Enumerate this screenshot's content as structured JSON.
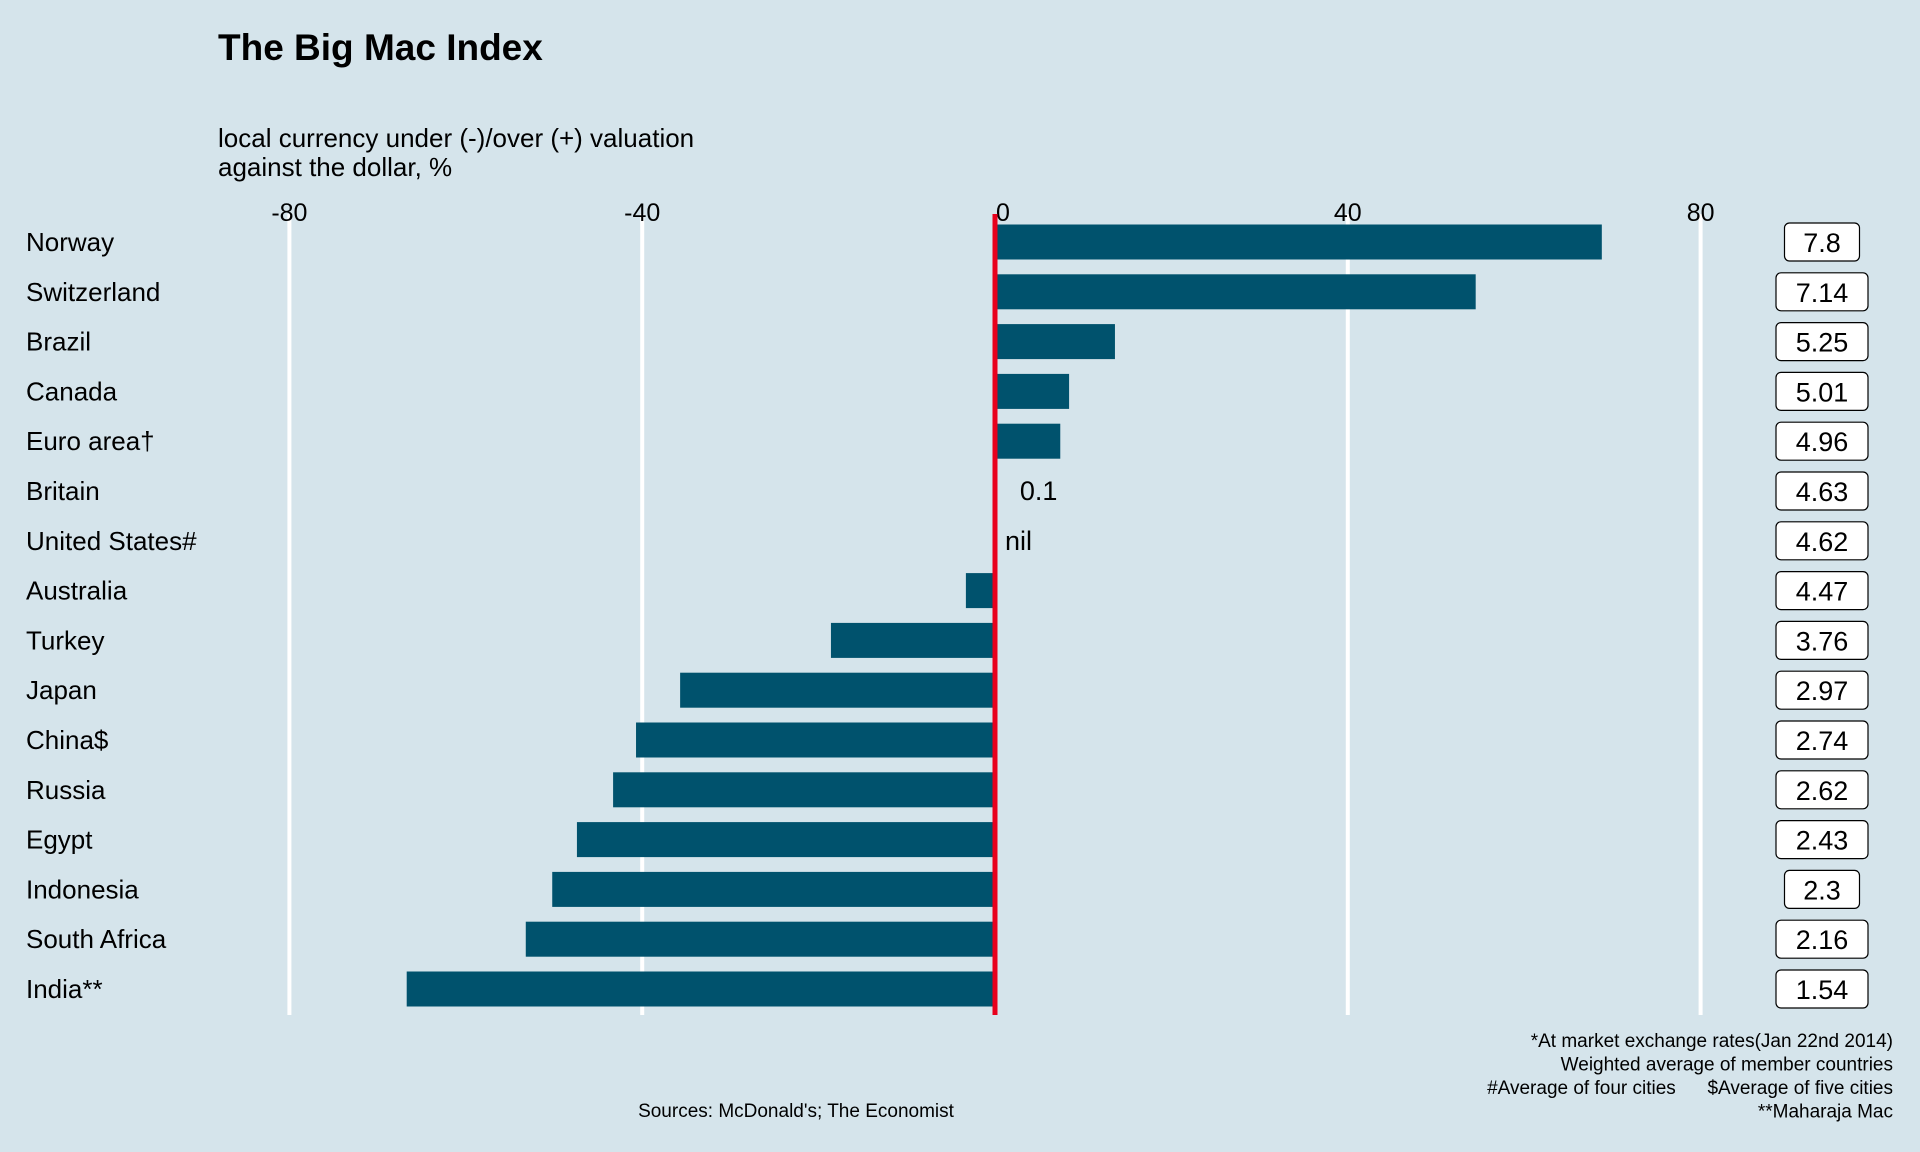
{
  "chart_data": {
    "type": "bar",
    "orientation": "horizontal",
    "title": "The Big Mac Index",
    "subtitle_lines": [
      "local currency under (-)/over (+) valuation",
      "against the dollar, %"
    ],
    "xlim": [
      -82,
      84
    ],
    "xticks": [
      -80,
      -40,
      0,
      40,
      80
    ],
    "tick_labels": [
      "-80",
      "-40",
      "0",
      "40",
      "80"
    ],
    "grid": "vertical",
    "colors": {
      "bar": "#00526d",
      "zero_line": "#e8001c",
      "grid": "#ffffff",
      "background": "#d5e4eb"
    },
    "categories": [
      "Norway",
      "Switzerland",
      "Brazil",
      "Canada",
      "Euro area†",
      "Britain",
      "United States#",
      "Australia",
      "Turkey",
      "Japan",
      "China$",
      "Russia",
      "Egypt",
      "Indonesia",
      "South Africa",
      "India**"
    ],
    "values": [
      68.8,
      54.5,
      13.6,
      8.4,
      7.4,
      0.1,
      0,
      -3.3,
      -18.6,
      -35.7,
      -40.7,
      -43.3,
      -47.4,
      -50.2,
      -53.2,
      -66.7
    ],
    "prices": [
      "7.8",
      "7.14",
      "5.25",
      "5.01",
      "4.96",
      "4.63",
      "4.62",
      "4.47",
      "3.76",
      "2.97",
      "2.74",
      "2.62",
      "2.43",
      "2.3",
      "2.16",
      "1.54"
    ],
    "bar_text": {
      "Britain": "0.1",
      "United States#": "nil"
    },
    "footnotes": [
      "*At market exchange rates(Jan 22nd 2014)",
      "Weighted average of member countries",
      "#Average of four cities      $Average of five cities",
      "**Maharaja Mac"
    ],
    "source": "Sources: McDonald's; The Economist"
  }
}
